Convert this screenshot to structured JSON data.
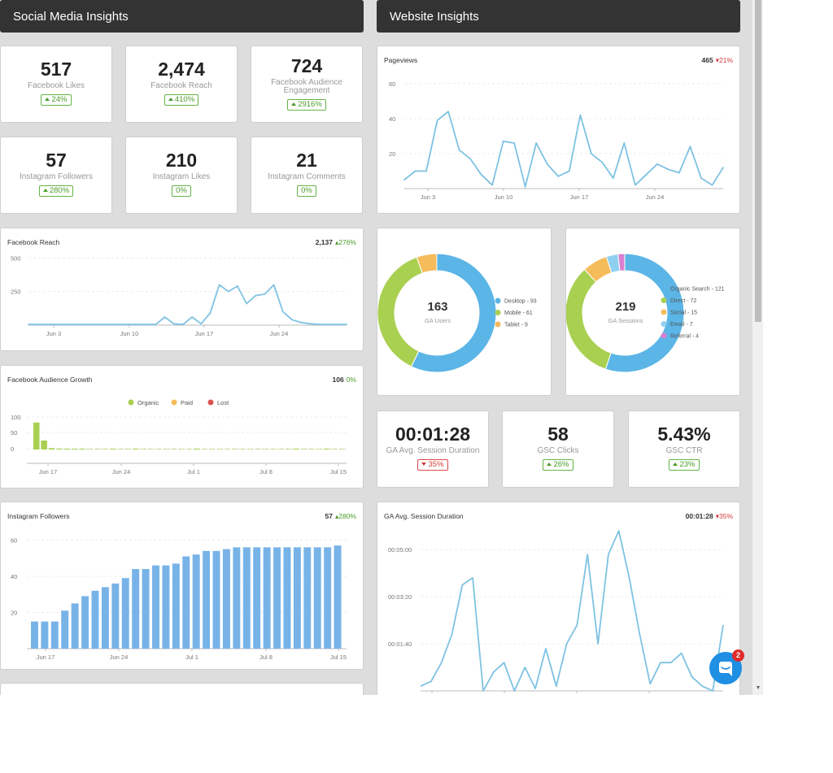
{
  "sections": {
    "social_title": "Social Media Insights",
    "website_title": "Website Insights"
  },
  "kpis": {
    "fb_likes": {
      "value": "517",
      "label": "Facebook Likes",
      "change": "24%"
    },
    "fb_reach": {
      "value": "2,474",
      "label": "Facebook Reach",
      "change": "410%"
    },
    "fb_engagement": {
      "value": "724",
      "label": "Facebook Audience Engagement",
      "change": "2916%"
    },
    "ig_followers": {
      "value": "57",
      "label": "Instagram Followers",
      "change": "280%"
    },
    "ig_likes": {
      "value": "210",
      "label": "Instagram Likes",
      "change": "0%"
    },
    "ig_comments": {
      "value": "21",
      "label": "Instagram Comments",
      "change": "0%"
    },
    "ga_session": {
      "value": "00:01:28",
      "label": "GA Avg. Session Duration",
      "change": "35%",
      "direction": "down"
    },
    "gsc_clicks": {
      "value": "58",
      "label": "GSC Clicks",
      "change": "26%"
    },
    "gsc_ctr": {
      "value": "5.43%",
      "label": "GSC CTR",
      "change": "23%"
    }
  },
  "cards": {
    "fb_reach_chart": {
      "title": "Facebook Reach",
      "metric": "2,137",
      "change": "276%"
    },
    "fb_growth": {
      "title": "Facebook Audience Growth",
      "metric": "106",
      "change": "0%"
    },
    "ig_followers_chart": {
      "title": "Instagram Followers",
      "metric": "57",
      "change": "280%"
    },
    "pageviews": {
      "title": "Pageviews",
      "metric": "465",
      "change": "21%"
    },
    "ga_users": {
      "center_value": "163",
      "center_label": "GA Users"
    },
    "ga_sessions": {
      "center_value": "219",
      "center_label": "GA Sessions"
    },
    "ga_session_chart": {
      "title": "GA Avg. Session Duration",
      "metric": "00:01:28",
      "change": "35%"
    }
  },
  "chat": {
    "badge": "2"
  },
  "colors": {
    "line": "#7ec2e2",
    "bar": "#78b3e8",
    "organic": "#a9d051",
    "paid": "#f5bc5c",
    "lost": "#d9534f",
    "up": "#4a9c2a",
    "down": "#d43a3a"
  },
  "chart_data": [
    {
      "type": "line",
      "title": "Pageviews",
      "x_ticks": [
        "Jun 3",
        "Jun 10",
        "Jun 17",
        "Jun 24"
      ],
      "y_ticks": [
        20,
        40,
        60
      ],
      "ylim": [
        0,
        65
      ],
      "values": [
        5,
        10,
        10,
        39,
        44,
        22,
        17,
        8,
        2,
        27,
        26,
        1,
        26,
        14,
        7,
        10,
        42,
        20,
        15,
        6,
        26,
        2,
        8,
        14,
        11,
        9,
        24,
        6,
        2,
        12
      ]
    },
    {
      "type": "line",
      "title": "Facebook Reach",
      "x_ticks": [
        "Jun 3",
        "Jun 10",
        "Jun 17",
        "Jun 24"
      ],
      "y_ticks": [
        250,
        500
      ],
      "ylim": [
        0,
        550
      ],
      "values": [
        5,
        5,
        5,
        5,
        5,
        5,
        5,
        5,
        5,
        5,
        5,
        5,
        5,
        5,
        5,
        60,
        10,
        5,
        60,
        10,
        90,
        300,
        250,
        290,
        160,
        220,
        230,
        300,
        100,
        40,
        20,
        10,
        5,
        5,
        5,
        5
      ]
    },
    {
      "type": "bar",
      "title": "Facebook Audience Growth",
      "legend": [
        "Organic",
        "Paid",
        "Lost"
      ],
      "x_ticks": [
        "Jun 17",
        "Jun 24",
        "Jul 1",
        "Jul 8",
        "Jul 15"
      ],
      "y_ticks": [
        100,
        50,
        0
      ],
      "ylim": [
        0,
        105
      ],
      "organic": [
        60,
        20,
        3,
        2,
        1,
        1,
        1,
        0,
        0,
        0,
        1,
        0,
        0,
        1,
        0,
        0,
        0,
        0,
        0,
        0,
        0,
        1,
        0,
        0,
        0,
        0,
        0,
        0,
        0,
        0,
        0,
        0,
        0,
        0,
        1,
        0,
        0,
        0,
        1,
        0,
        0
      ]
    },
    {
      "type": "bar",
      "title": "Instagram Followers",
      "x_ticks": [
        "Jun 17",
        "Jun 24",
        "Jul 1",
        "Jul 8",
        "Jul 15"
      ],
      "y_ticks": [
        20,
        40,
        60
      ],
      "ylim": [
        0,
        62
      ],
      "values": [
        15,
        15,
        15,
        21,
        25,
        29,
        32,
        34,
        36,
        39,
        44,
        44,
        46,
        46,
        47,
        51,
        52,
        54,
        54,
        55,
        56,
        56,
        56,
        56,
        56,
        56,
        56,
        56,
        56,
        56,
        57
      ]
    },
    {
      "type": "pie",
      "title": "GA Users",
      "slices": [
        {
          "label": "Desktop - 93",
          "value": 93,
          "color": "#5bb5e6"
        },
        {
          "label": "Mobile - 61",
          "value": 61,
          "color": "#a9d051"
        },
        {
          "label": "Tablet - 9",
          "value": 9,
          "color": "#f5bc5c"
        }
      ]
    },
    {
      "type": "pie",
      "title": "GA Sessions",
      "slices": [
        {
          "label": "Organic Search - 121",
          "value": 121,
          "color": "#5bb5e6"
        },
        {
          "label": "Direct - 72",
          "value": 72,
          "color": "#a9d051"
        },
        {
          "label": "Social - 15",
          "value": 15,
          "color": "#f5bc5c"
        },
        {
          "label": "Email - 7",
          "value": 7,
          "color": "#8fd0f0"
        },
        {
          "label": "Referral - 4",
          "value": 4,
          "color": "#d97fd0"
        }
      ]
    },
    {
      "type": "line",
      "title": "GA Avg. Session Duration",
      "y_ticks": [
        "00:01:40",
        "00:03:20",
        "00:05:00"
      ],
      "ylim": [
        0,
        340
      ],
      "values": [
        10,
        20,
        60,
        120,
        225,
        240,
        0,
        40,
        60,
        0,
        50,
        5,
        90,
        10,
        100,
        140,
        290,
        100,
        290,
        340,
        240,
        120,
        15,
        60,
        60,
        80,
        30,
        10,
        0,
        140
      ]
    }
  ]
}
